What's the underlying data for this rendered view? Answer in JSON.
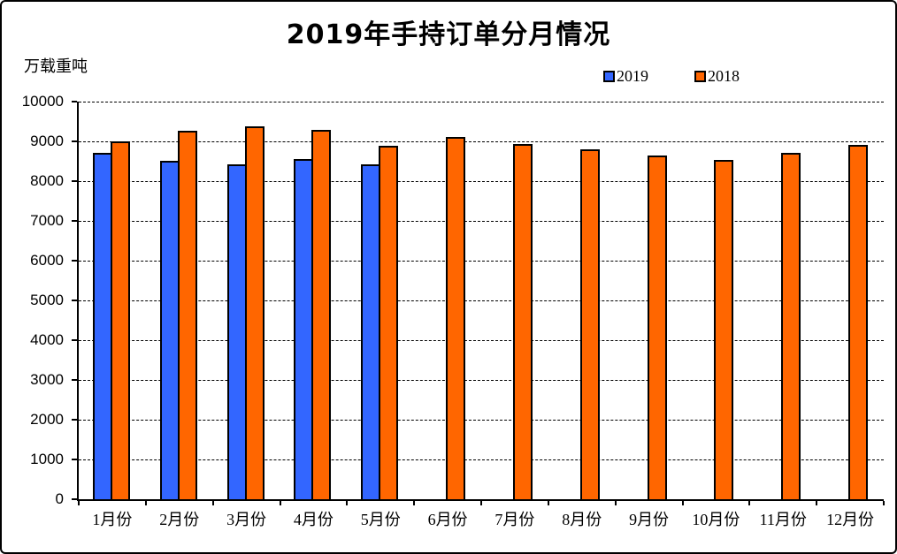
{
  "title": "2019年手持订单分月情况",
  "y_axis_unit": "万载重吨",
  "legend": [
    {
      "label": "2019",
      "color": "#3366FF"
    },
    {
      "label": "2018",
      "color": "#FF6600"
    }
  ],
  "chart_data": {
    "type": "bar",
    "title": "2019年手持订单分月情况",
    "ylabel": "万载重吨",
    "xlabel": "",
    "categories": [
      "1月份",
      "2月份",
      "3月份",
      "4月份",
      "5月份",
      "6月份",
      "7月份",
      "8月份",
      "9月份",
      "10月份",
      "11月份",
      "12月份"
    ],
    "series": [
      {
        "name": "2019",
        "color": "#3366FF",
        "values": [
          8720,
          8510,
          8430,
          8560,
          8430,
          null,
          null,
          null,
          null,
          null,
          null,
          null
        ]
      },
      {
        "name": "2018",
        "color": "#FF6600",
        "values": [
          9010,
          9270,
          9370,
          9290,
          8890,
          9110,
          8930,
          8800,
          8650,
          8540,
          8700,
          8910
        ]
      }
    ],
    "ylim": [
      0,
      10000
    ],
    "ytick_step": 1000,
    "grid": "horizontal-dashed",
    "legend_position": "top-right",
    "bar_outline_color": "#000000",
    "background_color": "#FFFFFF"
  }
}
